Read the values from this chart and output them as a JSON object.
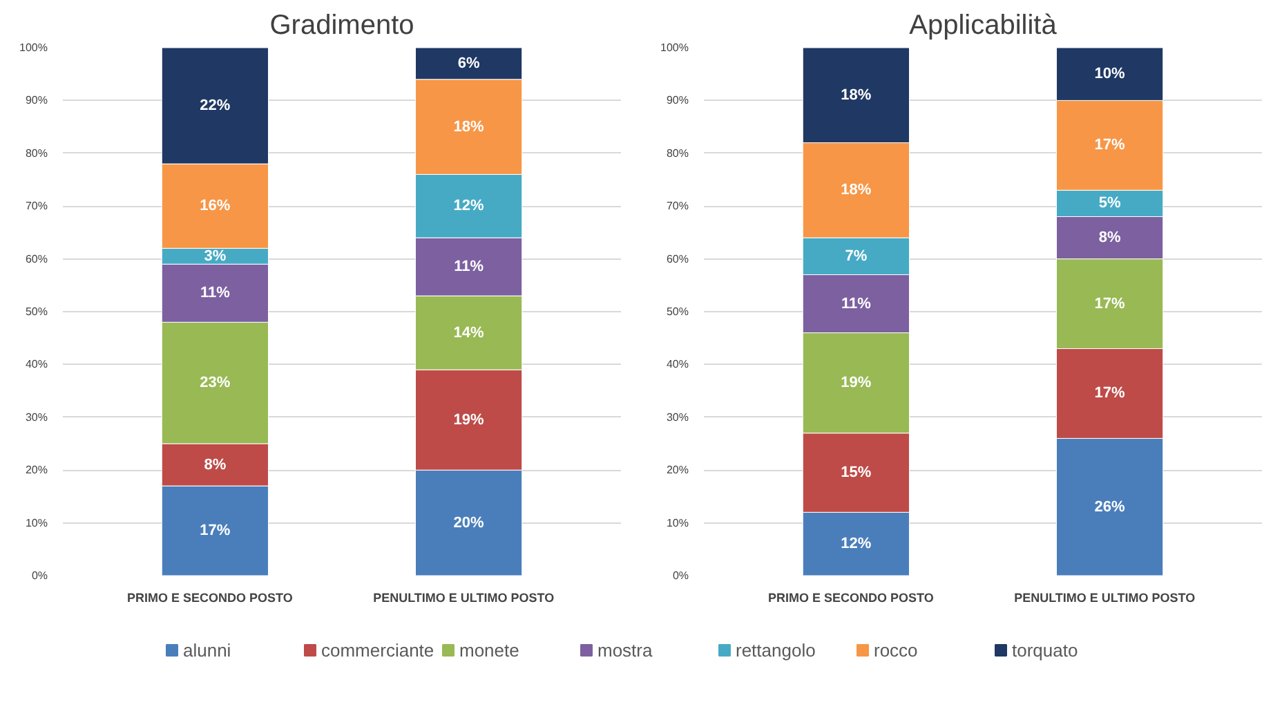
{
  "chart_data": [
    {
      "type": "bar",
      "title": "Gradimento",
      "stacked": true,
      "categories": [
        "PRIMO  E  SECONDO  POSTO",
        "PENULTIMO  E  ULTIMO  POSTO"
      ],
      "ylim": [
        0,
        100
      ],
      "yticks": [
        {
          "value": 0,
          "label": "0%"
        },
        {
          "value": 10,
          "label": "10%"
        },
        {
          "value": 20,
          "label": "20%"
        },
        {
          "value": 30,
          "label": "30%"
        },
        {
          "value": 40,
          "label": "40%"
        },
        {
          "value": 50,
          "label": "50%"
        },
        {
          "value": 60,
          "label": "60%"
        },
        {
          "value": 70,
          "label": "70%"
        },
        {
          "value": 80,
          "label": "80%"
        },
        {
          "value": 90,
          "label": "90%"
        },
        {
          "value": 100,
          "label": "100%"
        }
      ],
      "grid": "y",
      "legend": "bottom",
      "series": [
        {
          "name": "alunni",
          "color": "#4a7ebb",
          "values": [
            17,
            20
          ],
          "value_labels": [
            "17%",
            "20%"
          ]
        },
        {
          "name": "commerciante",
          "color": "#be4b48",
          "values": [
            8,
            19
          ],
          "value_labels": [
            "8%",
            "19%"
          ]
        },
        {
          "name": "monete",
          "color": "#98b954",
          "values": [
            23,
            14
          ],
          "value_labels": [
            "23%",
            "14%"
          ]
        },
        {
          "name": "mostra",
          "color": "#7d60a0",
          "values": [
            11,
            11
          ],
          "value_labels": [
            "11%",
            "11%"
          ]
        },
        {
          "name": "rettangolo",
          "color": "#46aac5",
          "values": [
            3,
            12
          ],
          "value_labels": [
            "3%",
            "12%"
          ]
        },
        {
          "name": "rocco",
          "color": "#f79646",
          "values": [
            16,
            18
          ],
          "value_labels": [
            "16%",
            "18%"
          ]
        },
        {
          "name": "torquato",
          "color": "#1f3864",
          "values": [
            22,
            6
          ],
          "value_labels": [
            "22%",
            "6%"
          ]
        }
      ]
    },
    {
      "type": "bar",
      "title": "Applicabilità",
      "stacked": true,
      "categories": [
        "PRIMO  E  SECONDO  POSTO",
        "PENULTIMO  E  ULTIMO  POSTO"
      ],
      "ylim": [
        0,
        100
      ],
      "yticks": [
        {
          "value": 0,
          "label": "0%"
        },
        {
          "value": 10,
          "label": "10%"
        },
        {
          "value": 20,
          "label": "20%"
        },
        {
          "value": 30,
          "label": "30%"
        },
        {
          "value": 40,
          "label": "40%"
        },
        {
          "value": 50,
          "label": "50%"
        },
        {
          "value": 60,
          "label": "60%"
        },
        {
          "value": 70,
          "label": "70%"
        },
        {
          "value": 80,
          "label": "80%"
        },
        {
          "value": 90,
          "label": "90%"
        },
        {
          "value": 100,
          "label": "100%"
        }
      ],
      "grid": "y",
      "series": [
        {
          "color": "#4a7ebb",
          "values": [
            12,
            26
          ],
          "value_labels": [
            "12%",
            "26%"
          ]
        },
        {
          "color": "#be4b48",
          "values": [
            15,
            17
          ],
          "value_labels": [
            "15%",
            "17%"
          ]
        },
        {
          "color": "#98b954",
          "values": [
            19,
            17
          ],
          "value_labels": [
            "19%",
            "17%"
          ]
        },
        {
          "color": "#7d60a0",
          "values": [
            11,
            8
          ],
          "value_labels": [
            "11%",
            "8%"
          ]
        },
        {
          "color": "#46aac5",
          "values": [
            7,
            5
          ],
          "value_labels": [
            "7%",
            "5%"
          ]
        },
        {
          "color": "#f79646",
          "values": [
            18,
            17
          ],
          "value_labels": [
            "18%",
            "17%"
          ]
        },
        {
          "color": "#1f3864",
          "values": [
            18,
            10
          ],
          "value_labels": [
            "18%",
            "10%"
          ]
        }
      ]
    }
  ]
}
